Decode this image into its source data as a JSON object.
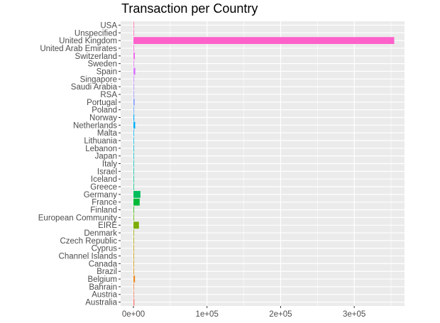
{
  "chart_data": {
    "type": "bar",
    "orientation": "horizontal",
    "title": "Transaction per Country",
    "xlabel": "",
    "ylabel": "",
    "xlim": [
      -16000,
      365000
    ],
    "grid": true,
    "legend": "none",
    "panel_background": "#ebebeb",
    "grid_color": "#ffffff",
    "x_ticks": [
      {
        "value": 0,
        "label": "0e+00"
      },
      {
        "value": 100000,
        "label": "1e+05"
      },
      {
        "value": 200000,
        "label": "2e+05"
      },
      {
        "value": 300000,
        "label": "3e+05"
      }
    ],
    "categories": [
      "Australia",
      "Austria",
      "Bahrain",
      "Belgium",
      "Brazil",
      "Canada",
      "Channel Islands",
      "Cyprus",
      "Czech Republic",
      "Denmark",
      "EIRE",
      "European Community",
      "Finland",
      "France",
      "Germany",
      "Greece",
      "Iceland",
      "Israel",
      "Italy",
      "Japan",
      "Lebanon",
      "Lithuania",
      "Malta",
      "Netherlands",
      "Norway",
      "Poland",
      "Portugal",
      "RSA",
      "Saudi Arabia",
      "Singapore",
      "Spain",
      "Sweden",
      "Switzerland",
      "United Arab Emirates",
      "United Kingdom",
      "Unspecified",
      "USA"
    ],
    "values": [
      1259,
      401,
      17,
      2069,
      32,
      151,
      758,
      622,
      30,
      389,
      7485,
      61,
      695,
      8491,
      9495,
      146,
      182,
      297,
      803,
      358,
      45,
      35,
      127,
      2371,
      1086,
      341,
      1519,
      58,
      10,
      229,
      2533,
      462,
      1877,
      68,
      354345,
      244,
      291
    ],
    "colors": [
      "#F8766D",
      "#F37B59",
      "#ED8141",
      "#E7861B",
      "#DE8C00",
      "#D39200",
      "#C79800",
      "#B99E00",
      "#AAA300",
      "#97A800",
      "#7CAE00",
      "#5BB300",
      "#1AB700",
      "#00BA38",
      "#00BD5C",
      "#00C077",
      "#00C08D",
      "#00C1A1",
      "#00C0B4",
      "#00BFC4",
      "#00BCD4",
      "#00B8E3",
      "#00B4F0",
      "#00AEFA",
      "#00A7FF",
      "#529EFF",
      "#7C96FF",
      "#9A8EFF",
      "#B385FF",
      "#C77CFF",
      "#D874FD",
      "#E66CF3",
      "#F066E8",
      "#F863DA",
      "#FD61CA",
      "#FF62B8",
      "#FF65A5"
    ]
  }
}
